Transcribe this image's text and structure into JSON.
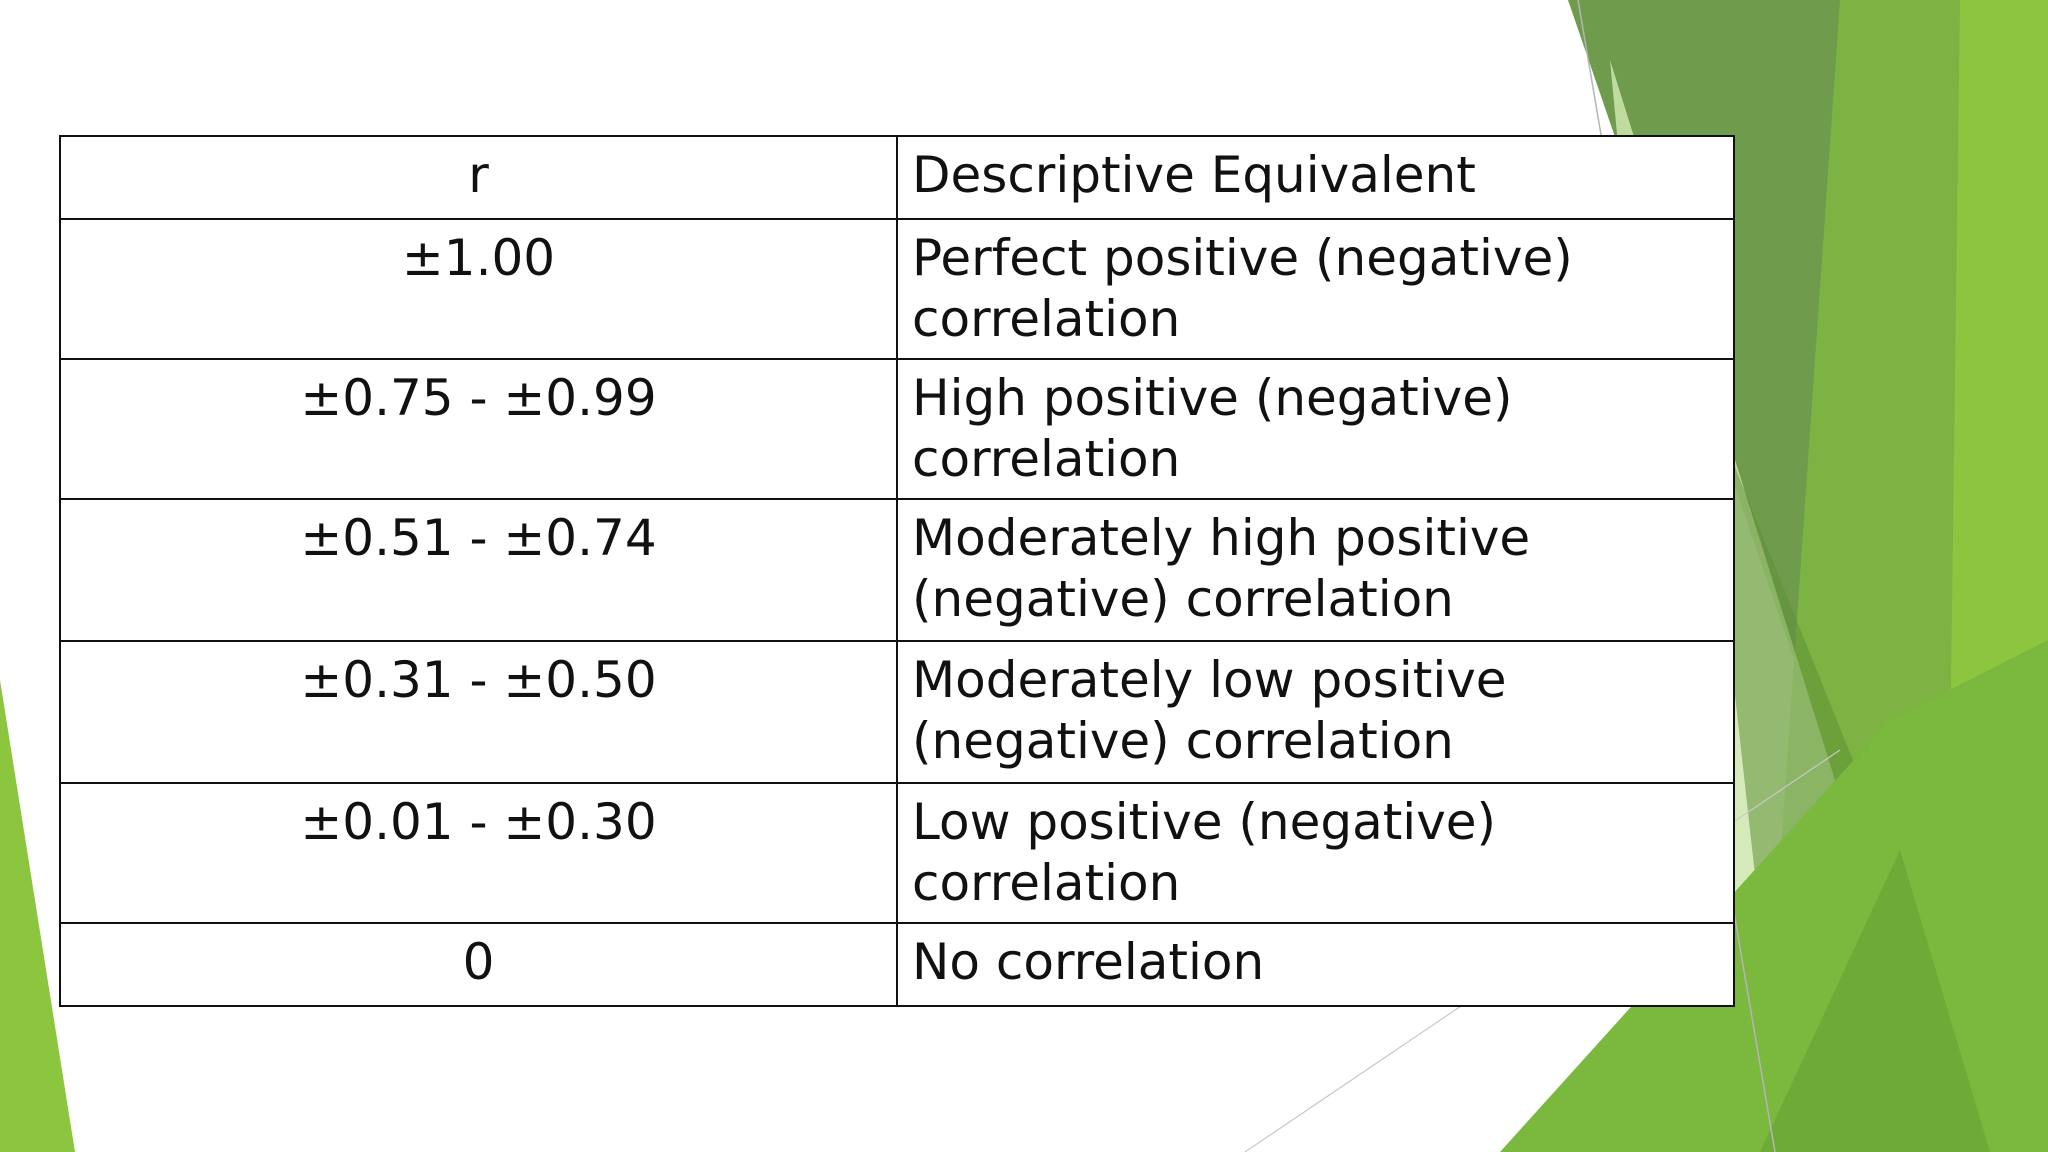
{
  "colors": {
    "background": "#ffffff",
    "text": "#111111",
    "green_dark": "#5c8f3a",
    "green_mid": "#74a546",
    "green_bright": "#8cc63f",
    "green_light": "#c9e3a6"
  },
  "table": {
    "headers": [
      "r",
      "Descriptive Equivalent"
    ],
    "rows": [
      {
        "r": "±1.00",
        "desc": "Perfect positive (negative) correlation"
      },
      {
        "r": "±0.75 - ±0.99",
        "desc": "High positive (negative) correlation"
      },
      {
        "r": "±0.51 - ±0.74",
        "desc": "Moderately high positive (negative) correlation"
      },
      {
        "r": "±0.31 - ±0.50",
        "desc": "Moderately low positive (negative) correlation"
      },
      {
        "r": "±0.01 - ±0.30",
        "desc": "Low positive (negative) correlation"
      },
      {
        "r": "0",
        "desc": "No correlation"
      }
    ]
  }
}
